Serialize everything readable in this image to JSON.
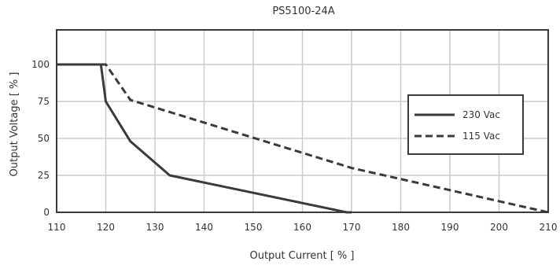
{
  "chart_data": {
    "type": "line",
    "title": "PS5100-24A",
    "xlabel": "Output Current [ % ]",
    "ylabel": "Output Voltage [ % ]",
    "xlim": [
      110,
      210
    ],
    "ylim": [
      0,
      125
    ],
    "x_ticks": [
      "110",
      "120",
      "130",
      "140",
      "150",
      "160",
      "170",
      "180",
      "190",
      "200",
      "210"
    ],
    "y_ticks": [
      "0",
      "25",
      "50",
      "75",
      "100"
    ],
    "grid": true,
    "legend_position": "right",
    "series": [
      {
        "name": "230 Vac",
        "style": "solid",
        "color": "#3a3a3a",
        "points": [
          [
            110,
            100
          ],
          [
            119,
            100
          ],
          [
            120,
            75
          ],
          [
            125,
            48
          ],
          [
            133,
            25
          ],
          [
            169,
            0
          ],
          [
            170,
            0
          ]
        ]
      },
      {
        "name": "115 Vac",
        "style": "dashed",
        "color": "#3a3a3a",
        "points": [
          [
            110,
            100
          ],
          [
            120,
            100
          ],
          [
            125,
            76
          ],
          [
            170,
            30
          ],
          [
            210,
            0
          ]
        ]
      }
    ]
  }
}
